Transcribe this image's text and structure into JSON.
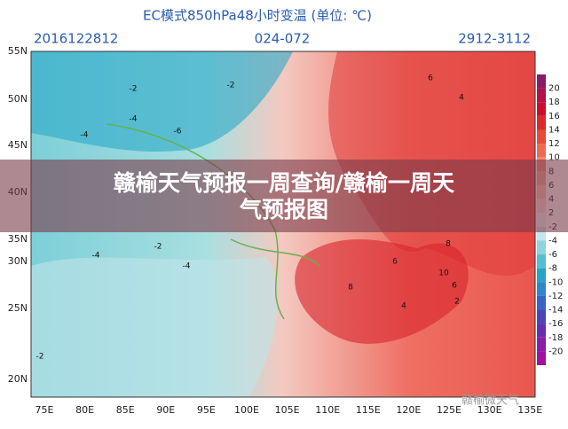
{
  "header": {
    "title": "EC模式850hPa48小时变温 (单位: ℃)",
    "date": "2016122812",
    "hours": "024-072",
    "range": "2912-3112"
  },
  "lat_labels": [
    "55N",
    "50N",
    "45N",
    "40N",
    "35N",
    "30N",
    "25N",
    "20N"
  ],
  "lon_labels": [
    "75E",
    "80E",
    "85E",
    "90E",
    "95E",
    "100E",
    "105E",
    "110E",
    "115E",
    "120E",
    "125E",
    "130E",
    "135E"
  ],
  "colorbar": {
    "labels": [
      20,
      18,
      16,
      14,
      12,
      10,
      8,
      6,
      4,
      2,
      -2,
      -4,
      -6,
      -8,
      -10,
      -12,
      -14,
      -16,
      -18,
      -20
    ],
    "colors": [
      "#8b1a6b",
      "#b0124a",
      "#c8102e",
      "#dc2a2a",
      "#e84a3a",
      "#ef6a55",
      "#f38a72",
      "#f6a590",
      "#f9c2b2",
      "#fbdcd2",
      "#f4f4f4",
      "#c3e6ef",
      "#8fd3e0",
      "#55bfd0",
      "#27a4c4",
      "#2f86c8",
      "#3a64c2",
      "#4a45b8",
      "#6a2cae",
      "#8a1ea6",
      "#a012a0"
    ]
  },
  "contour_labels": [
    "-4",
    "-4",
    "-2",
    "-6",
    "-4",
    "-2",
    "-4",
    "6",
    "4",
    "8",
    "6",
    "10",
    "8",
    "6",
    "4",
    "2",
    "-2",
    "-2"
  ],
  "overlay": {
    "title_line1": "赣榆天气预报一周查询/赣榆一周天",
    "title_line2": "气预报图"
  },
  "watermark": "赣榆微天气"
}
